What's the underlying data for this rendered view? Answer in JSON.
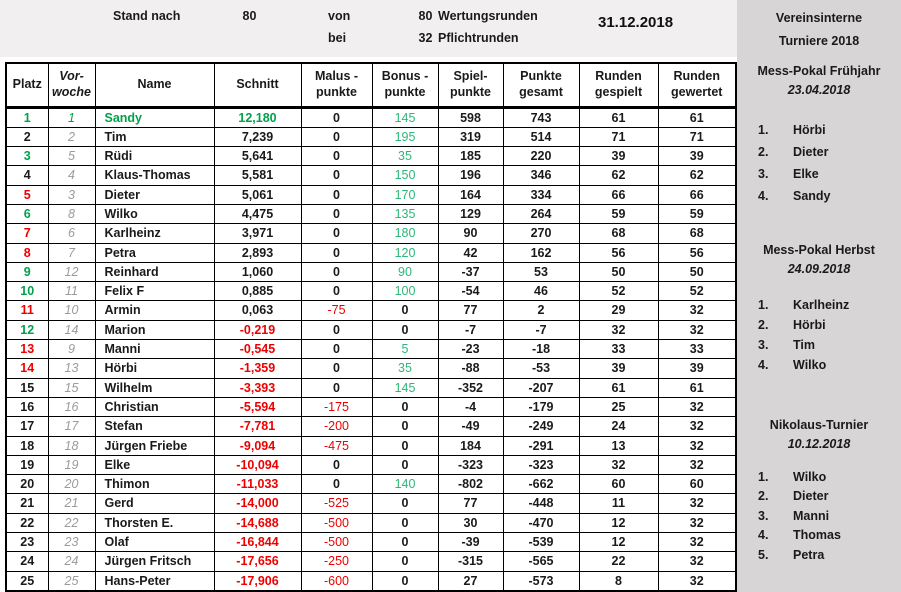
{
  "header": {
    "stand_label": "Stand nach",
    "rounds_played": "80",
    "von_label": "von",
    "rounds_total": "80",
    "wertung_label": "Wertungsrunden",
    "bei_label": "bei",
    "pflicht_value": "32",
    "pflicht_label": "Pflichtrunden",
    "date": "31.12.2018"
  },
  "colors": {
    "green": "#00a24c",
    "bonus_green": "#2cb878",
    "red": "#ee0000",
    "vorwoche_gray": "#9b9b9b",
    "top_band_bg": "#f1efef",
    "sidebar_bg": "#d7d5d5"
  },
  "table": {
    "columns": [
      "Platz",
      "Vor-\nwoche",
      "Name",
      "Schnitt",
      "Malus -\npunkte",
      "Bonus -\npunkte",
      "Spiel-\npunkte",
      "Punkte\ngesamt",
      "Runden\ngespielt",
      "Runden\ngewertet"
    ],
    "rows": [
      {
        "platz": "1",
        "trend": "up",
        "leader": true,
        "vorwoche": "1",
        "name": "Sandy",
        "schnitt": "12,180",
        "malus": "0",
        "bonus": "145",
        "spiel": "598",
        "gesamt": "743",
        "gespielt": "61",
        "gewertet": "61"
      },
      {
        "platz": "2",
        "trend": "same",
        "leader": false,
        "vorwoche": "2",
        "name": "Tim",
        "schnitt": "7,239",
        "malus": "0",
        "bonus": "195",
        "spiel": "319",
        "gesamt": "514",
        "gespielt": "71",
        "gewertet": "71"
      },
      {
        "platz": "3",
        "trend": "up",
        "leader": false,
        "vorwoche": "5",
        "name": "Rüdi",
        "schnitt": "5,641",
        "malus": "0",
        "bonus": "35",
        "spiel": "185",
        "gesamt": "220",
        "gespielt": "39",
        "gewertet": "39"
      },
      {
        "platz": "4",
        "trend": "same",
        "leader": false,
        "vorwoche": "4",
        "name": "Klaus-Thomas",
        "schnitt": "5,581",
        "malus": "0",
        "bonus": "150",
        "spiel": "196",
        "gesamt": "346",
        "gespielt": "62",
        "gewertet": "62"
      },
      {
        "platz": "5",
        "trend": "down",
        "leader": false,
        "vorwoche": "3",
        "name": "Dieter",
        "schnitt": "5,061",
        "malus": "0",
        "bonus": "170",
        "spiel": "164",
        "gesamt": "334",
        "gespielt": "66",
        "gewertet": "66"
      },
      {
        "platz": "6",
        "trend": "up",
        "leader": false,
        "vorwoche": "8",
        "name": "Wilko",
        "schnitt": "4,475",
        "malus": "0",
        "bonus": "135",
        "spiel": "129",
        "gesamt": "264",
        "gespielt": "59",
        "gewertet": "59"
      },
      {
        "platz": "7",
        "trend": "down",
        "leader": false,
        "vorwoche": "6",
        "name": "Karlheinz",
        "schnitt": "3,971",
        "malus": "0",
        "bonus": "180",
        "spiel": "90",
        "gesamt": "270",
        "gespielt": "68",
        "gewertet": "68"
      },
      {
        "platz": "8",
        "trend": "down",
        "leader": false,
        "vorwoche": "7",
        "name": "Petra",
        "schnitt": "2,893",
        "malus": "0",
        "bonus": "120",
        "spiel": "42",
        "gesamt": "162",
        "gespielt": "56",
        "gewertet": "56"
      },
      {
        "platz": "9",
        "trend": "up",
        "leader": false,
        "vorwoche": "12",
        "name": "Reinhard",
        "schnitt": "1,060",
        "malus": "0",
        "bonus": "90",
        "spiel": "-37",
        "gesamt": "53",
        "gespielt": "50",
        "gewertet": "50"
      },
      {
        "platz": "10",
        "trend": "up",
        "leader": false,
        "vorwoche": "11",
        "name": "Felix F",
        "schnitt": "0,885",
        "malus": "0",
        "bonus": "100",
        "spiel": "-54",
        "gesamt": "46",
        "gespielt": "52",
        "gewertet": "52"
      },
      {
        "platz": "11",
        "trend": "down",
        "leader": false,
        "vorwoche": "10",
        "name": "Armin",
        "schnitt": "0,063",
        "malus": "-75",
        "bonus": "0",
        "spiel": "77",
        "gesamt": "2",
        "gespielt": "29",
        "gewertet": "32"
      },
      {
        "platz": "12",
        "trend": "up",
        "leader": false,
        "vorwoche": "14",
        "name": "Marion",
        "schnitt": "-0,219",
        "malus": "0",
        "bonus": "0",
        "spiel": "-7",
        "gesamt": "-7",
        "gespielt": "32",
        "gewertet": "32"
      },
      {
        "platz": "13",
        "trend": "down",
        "leader": false,
        "vorwoche": "9",
        "name": "Manni",
        "schnitt": "-0,545",
        "malus": "0",
        "bonus": "5",
        "spiel": "-23",
        "gesamt": "-18",
        "gespielt": "33",
        "gewertet": "33"
      },
      {
        "platz": "14",
        "trend": "down",
        "leader": false,
        "vorwoche": "13",
        "name": "Hörbi",
        "schnitt": "-1,359",
        "malus": "0",
        "bonus": "35",
        "spiel": "-88",
        "gesamt": "-53",
        "gespielt": "39",
        "gewertet": "39"
      },
      {
        "platz": "15",
        "trend": "same",
        "leader": false,
        "vorwoche": "15",
        "name": "Wilhelm",
        "schnitt": "-3,393",
        "malus": "0",
        "bonus": "145",
        "spiel": "-352",
        "gesamt": "-207",
        "gespielt": "61",
        "gewertet": "61"
      },
      {
        "platz": "16",
        "trend": "same",
        "leader": false,
        "vorwoche": "16",
        "name": "Christian",
        "schnitt": "-5,594",
        "malus": "-175",
        "bonus": "0",
        "spiel": "-4",
        "gesamt": "-179",
        "gespielt": "25",
        "gewertet": "32"
      },
      {
        "platz": "17",
        "trend": "same",
        "leader": false,
        "vorwoche": "17",
        "name": "Stefan",
        "schnitt": "-7,781",
        "malus": "-200",
        "bonus": "0",
        "spiel": "-49",
        "gesamt": "-249",
        "gespielt": "24",
        "gewertet": "32"
      },
      {
        "platz": "18",
        "trend": "same",
        "leader": false,
        "vorwoche": "18",
        "name": "Jürgen Friebe",
        "schnitt": "-9,094",
        "malus": "-475",
        "bonus": "0",
        "spiel": "184",
        "gesamt": "-291",
        "gespielt": "13",
        "gewertet": "32"
      },
      {
        "platz": "19",
        "trend": "same",
        "leader": false,
        "vorwoche": "19",
        "name": "Elke",
        "schnitt": "-10,094",
        "malus": "0",
        "bonus": "0",
        "spiel": "-323",
        "gesamt": "-323",
        "gespielt": "32",
        "gewertet": "32"
      },
      {
        "platz": "20",
        "trend": "same",
        "leader": false,
        "vorwoche": "20",
        "name": "Thimon",
        "schnitt": "-11,033",
        "malus": "0",
        "bonus": "140",
        "spiel": "-802",
        "gesamt": "-662",
        "gespielt": "60",
        "gewertet": "60"
      },
      {
        "platz": "21",
        "trend": "same",
        "leader": false,
        "vorwoche": "21",
        "name": "Gerd",
        "schnitt": "-14,000",
        "malus": "-525",
        "bonus": "0",
        "spiel": "77",
        "gesamt": "-448",
        "gespielt": "11",
        "gewertet": "32"
      },
      {
        "platz": "22",
        "trend": "same",
        "leader": false,
        "vorwoche": "22",
        "name": "Thorsten E.",
        "schnitt": "-14,688",
        "malus": "-500",
        "bonus": "0",
        "spiel": "30",
        "gesamt": "-470",
        "gespielt": "12",
        "gewertet": "32"
      },
      {
        "platz": "23",
        "trend": "same",
        "leader": false,
        "vorwoche": "23",
        "name": "Olaf",
        "schnitt": "-16,844",
        "malus": "-500",
        "bonus": "0",
        "spiel": "-39",
        "gesamt": "-539",
        "gespielt": "12",
        "gewertet": "32"
      },
      {
        "platz": "24",
        "trend": "same",
        "leader": false,
        "vorwoche": "24",
        "name": "Jürgen Fritsch",
        "schnitt": "-17,656",
        "malus": "-250",
        "bonus": "0",
        "spiel": "-315",
        "gesamt": "-565",
        "gespielt": "22",
        "gewertet": "32"
      },
      {
        "platz": "25",
        "trend": "same",
        "leader": false,
        "vorwoche": "25",
        "name": "Hans-Peter",
        "schnitt": "-17,906",
        "malus": "-600",
        "bonus": "0",
        "spiel": "27",
        "gesamt": "-573",
        "gespielt": "8",
        "gewertet": "32"
      }
    ]
  },
  "sidebar": {
    "title_line1": "Vereinsinterne",
    "title_line2": "Turniere 2018",
    "sections": [
      {
        "title": "Mess-Pokal Frühjahr",
        "date": "23.04.2018",
        "results": [
          "Hörbi",
          "Dieter",
          "Elke",
          "Sandy"
        ]
      },
      {
        "title": "Mess-Pokal Herbst",
        "date": "24.09.2018",
        "results": [
          "Karlheinz",
          "Hörbi",
          "Tim",
          "Wilko"
        ]
      },
      {
        "title": "Nikolaus-Turnier",
        "date": "10.12.2018",
        "results": [
          "Wilko",
          "Dieter",
          "Manni",
          "Thomas",
          "Petra"
        ]
      }
    ]
  }
}
